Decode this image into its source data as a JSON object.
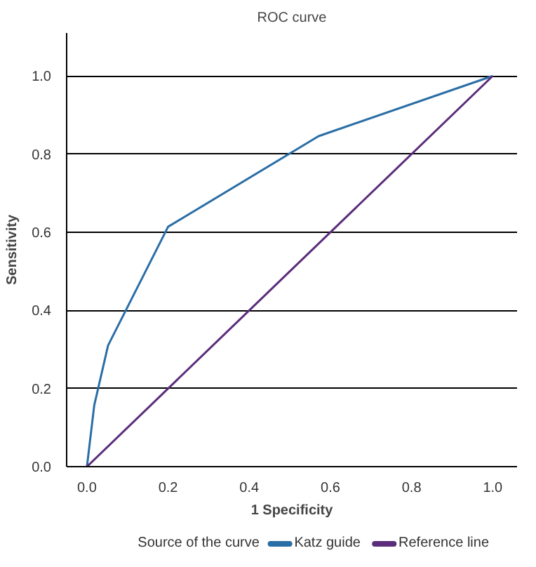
{
  "chart_data": {
    "type": "line",
    "title": "ROC curve",
    "xlabel": "1 Specificity",
    "ylabel": "Sensitivity",
    "legend_title": "Source of the curve",
    "series": [
      {
        "name": "Katz guide",
        "color": "#2a6ea6",
        "x": [
          0,
          0.018,
          0.052,
          0.2,
          0.571,
          1
        ],
        "values": [
          0,
          0.157,
          0.31,
          0.614,
          0.846,
          1
        ]
      },
      {
        "name": "Reference line",
        "color": "#5b2c7a",
        "x": [
          0,
          1
        ],
        "values": [
          0,
          1
        ]
      }
    ],
    "xlim": [
      -0.05,
      1.06
    ],
    "ylim": [
      0,
      1.11
    ],
    "xticks": [
      {
        "value": 0,
        "label": "0.0"
      },
      0.2,
      0.4,
      0.6,
      0.8,
      {
        "value": 1,
        "label": "1.0"
      }
    ],
    "yticks": [
      {
        "value": 0,
        "label": "0.0"
      },
      0.2,
      0.4,
      0.6,
      0.8,
      {
        "value": 1,
        "label": "1.0"
      }
    ],
    "grid": "y",
    "legend": "bottom",
    "line_style": "solid"
  }
}
